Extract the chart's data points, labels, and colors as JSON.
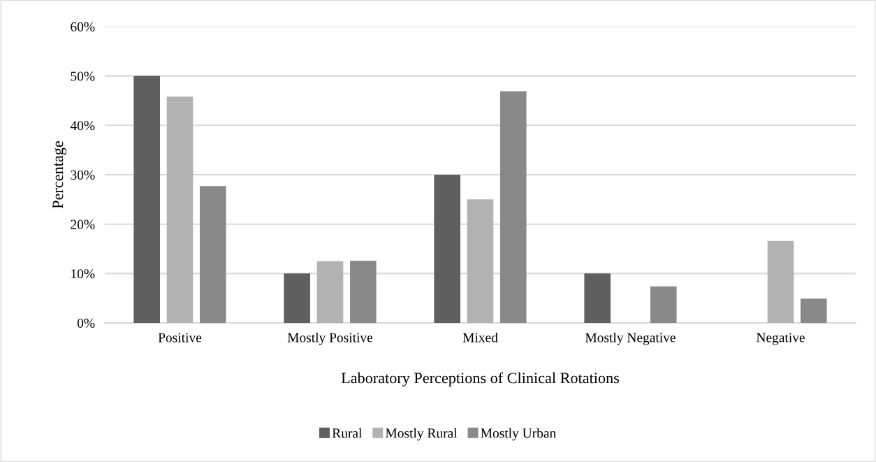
{
  "chart_data": {
    "type": "bar",
    "xlabel": "Laboratory Perceptions of Clinical Rotations",
    "ylabel": "Percentage",
    "categories": [
      "Positive",
      "Mostly Positive",
      "Mixed",
      "Mostly Negative",
      "Negative"
    ],
    "series": [
      {
        "name": "Rural",
        "color": "#5f5f5f",
        "values": [
          50,
          10,
          30,
          10,
          0
        ]
      },
      {
        "name": "Mostly Rural",
        "color": "#b2b2b2",
        "values": [
          45.8,
          12.5,
          25,
          0,
          16.6
        ]
      },
      {
        "name": "Mostly Urban",
        "color": "#898989",
        "values": [
          27.7,
          12.6,
          46.9,
          7.4,
          4.9
        ]
      }
    ],
    "ylim": [
      0,
      60
    ],
    "yticks": [
      {
        "value": 0,
        "label": "0%"
      },
      {
        "value": 10,
        "label": "10%"
      },
      {
        "value": 20,
        "label": "20%"
      },
      {
        "value": 30,
        "label": "30%"
      },
      {
        "value": 40,
        "label": "40%"
      },
      {
        "value": 50,
        "label": "50%"
      },
      {
        "value": 60,
        "label": "60%"
      }
    ],
    "grid": "y",
    "legend": "bottom"
  }
}
